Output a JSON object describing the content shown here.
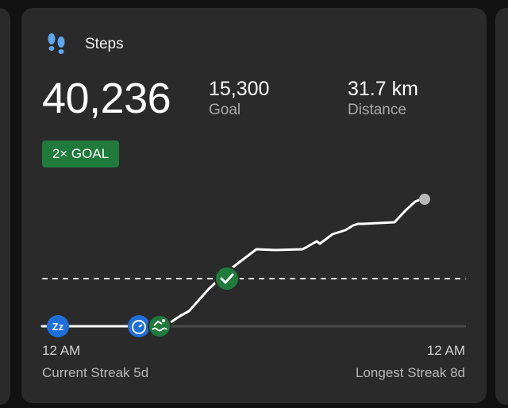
{
  "card": {
    "title": "Steps",
    "icon": "footprints-icon",
    "steps": "40,236",
    "goal": {
      "value": "15,300",
      "label": "Goal"
    },
    "distance": {
      "value": "31.7 km",
      "label": "Distance"
    },
    "badge": "2× GOAL",
    "timeline": {
      "start_label": "12 AM",
      "end_label": "12 AM",
      "markers": [
        "sleep-icon",
        "timer-icon",
        "swimming-icon",
        "goal-check-icon"
      ]
    },
    "streaks": {
      "current": "Current Streak 5d",
      "longest": "Longest Streak 8d"
    },
    "colors": {
      "accent_green": "#1f7a3c",
      "blue": "#1e6fd9",
      "footprint_blue": "#5aa8f0"
    }
  }
}
